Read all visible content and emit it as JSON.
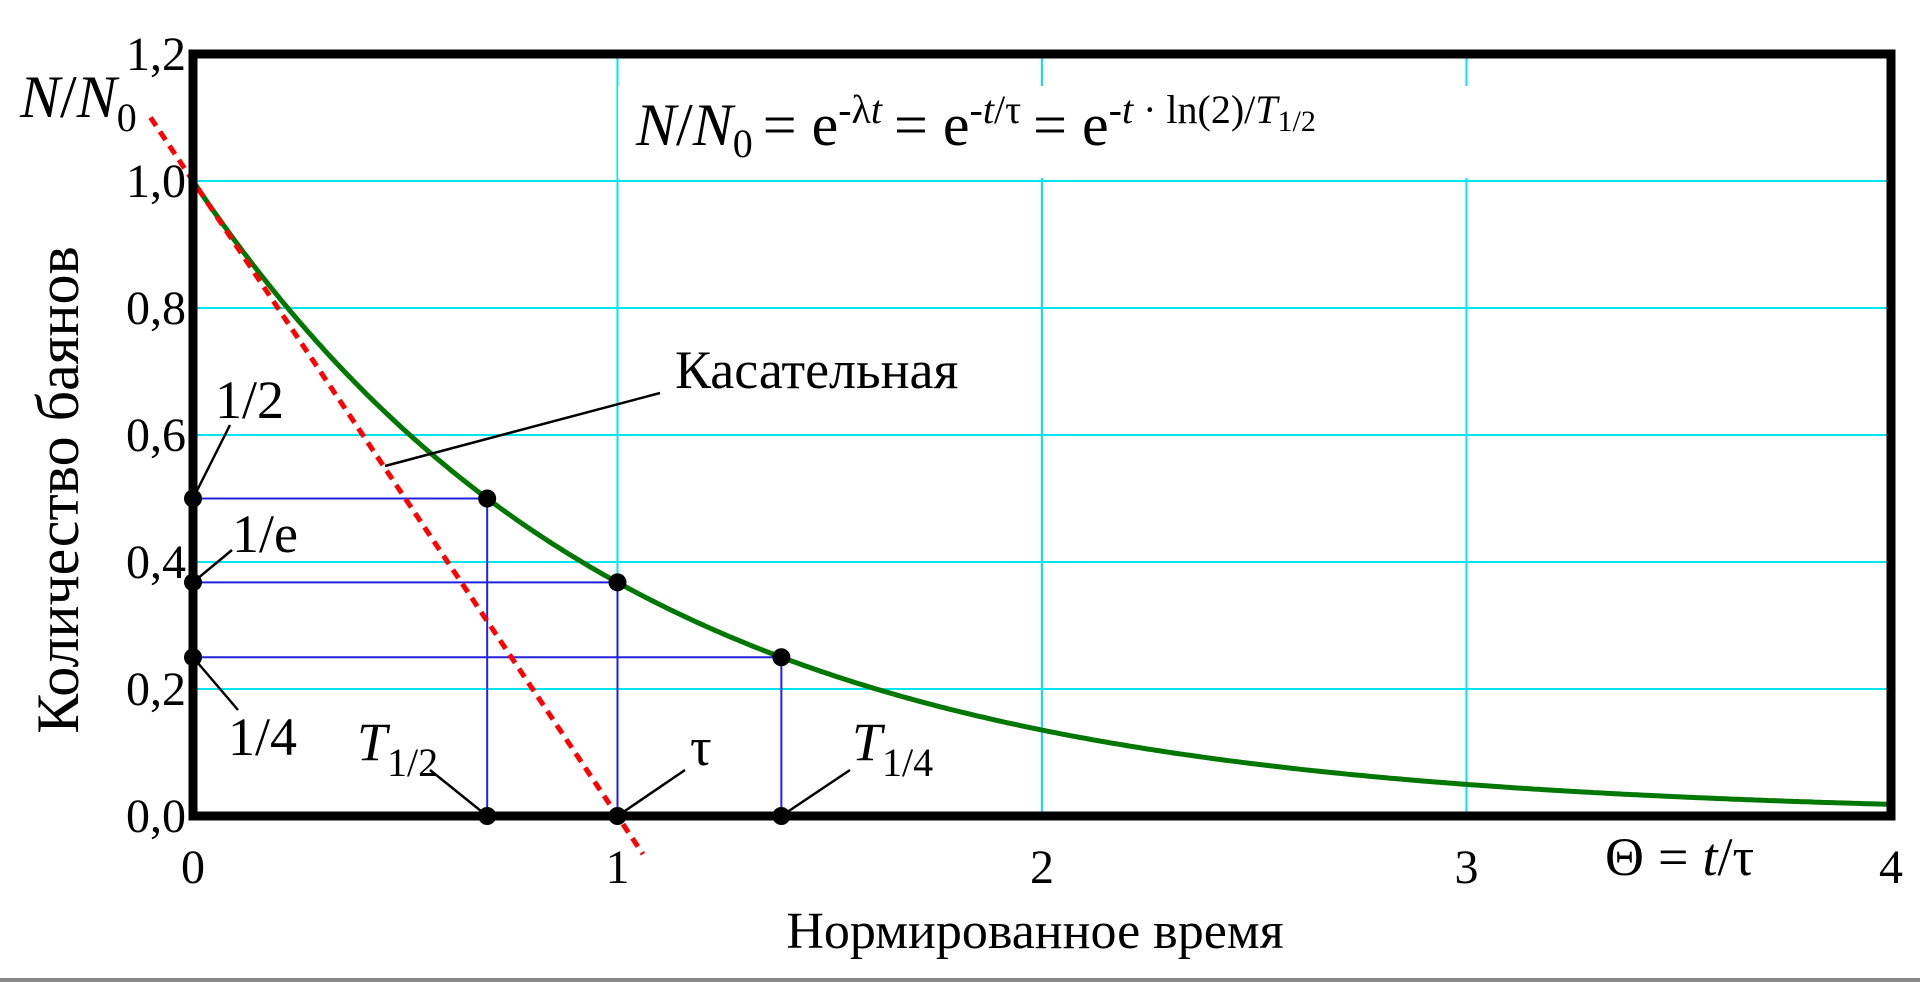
{
  "chart_data": {
    "type": "line",
    "xlabel": "Нормированное время",
    "ylabel": "Количество баянов",
    "x_axis_symbol": {
      "lhs": "Θ",
      "eq": "=",
      "t": "t",
      "slash": "/",
      "tau": "τ"
    },
    "y_axis_symbol": {
      "n": "N",
      "slash": "/",
      "n0": "N",
      "n0_sub": "0"
    },
    "xlim": [
      0,
      4
    ],
    "ylim": [
      0,
      1.2
    ],
    "x_ticks": [
      "0",
      "1",
      "2",
      "3",
      "4"
    ],
    "y_ticks": [
      "0,0",
      "0,2",
      "0,4",
      "0,6",
      "0,8",
      "1,0",
      "1,2"
    ],
    "x_tick_values": [
      0,
      1,
      2,
      3,
      4
    ],
    "y_tick_values": [
      0,
      0.2,
      0.4,
      0.6,
      0.8,
      1.0,
      1.2
    ],
    "grid": true,
    "formula": {
      "p1": "N",
      "p2": "/",
      "p3": "N",
      "p3_sub": "0",
      "eq1": "= e",
      "exp1": "-λ",
      "exp1_it": "t",
      "eq2": "= e",
      "exp2_a": "-",
      "exp2_b": "t",
      "exp2_c": "/τ",
      "eq3": "= e",
      "exp3_a": "-",
      "exp3_b": "t",
      "exp3_c": " · ln(2)/",
      "exp3_d": "T",
      "exp3_sub": "1/2"
    },
    "series": [
      {
        "name": "",
        "kind": "exp_decay",
        "x_range": [
          0,
          4
        ],
        "color": "#007700"
      },
      {
        "name": "Касательная",
        "kind": "tangent",
        "x_range": [
          -0.1,
          1.06
        ],
        "color": "#ff0000"
      }
    ],
    "key_points": [
      {
        "x": 0.693,
        "y": 0.5
      },
      {
        "x": 1.0,
        "y": 0.368
      },
      {
        "x": 1.386,
        "y": 0.25
      }
    ],
    "annotations": {
      "tangent_label": "Касательная",
      "half": "1/2",
      "inv_e": "1/e",
      "quarter": "1/4",
      "t_half": {
        "main": "T",
        "sub": "1/2"
      },
      "tau": "τ",
      "t_quarter": {
        "main": "T",
        "sub": "1/4"
      }
    },
    "colors": {
      "curve": "#007700",
      "tangent": "#ff0000",
      "guides": "#2222dd",
      "grid": "#00e5ee",
      "frame": "#000000"
    }
  }
}
